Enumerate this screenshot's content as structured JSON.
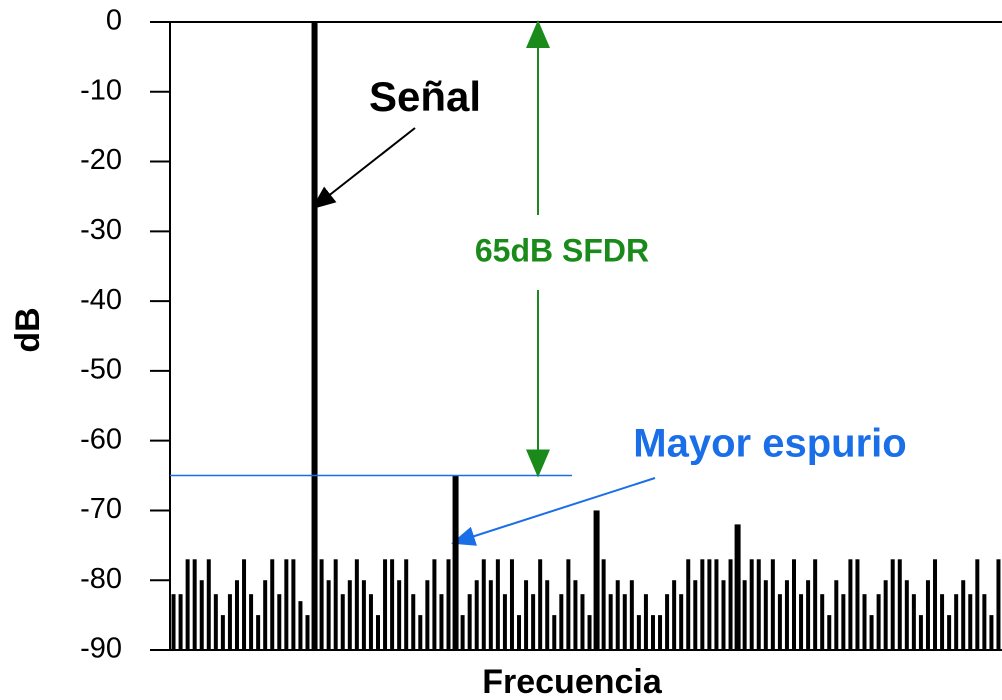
{
  "chart_data": {
    "type": "bar",
    "x_label": "Frecuencia",
    "y_label": "dB",
    "annotations": {
      "signal": "Señal",
      "sfdr": "65dB SFDR",
      "spur": "Mayor espurio"
    },
    "values": [
      -82,
      -82,
      -77,
      -77,
      -80,
      -77,
      -82,
      -85,
      -82,
      -80,
      -77,
      -82,
      -85,
      -80,
      -77,
      -82,
      -77,
      -77,
      -83,
      -85,
      0,
      -77,
      -80,
      -77,
      -82,
      -80,
      -77,
      -80,
      -82,
      -85,
      -77,
      -77,
      -80,
      -77,
      -82,
      -85,
      -80,
      -77,
      -82,
      -77,
      -65,
      -85,
      -82,
      -80,
      -77,
      -80,
      -77,
      -82,
      -77,
      -85,
      -80,
      -82,
      -77,
      -80,
      -85,
      -82,
      -77,
      -80,
      -82,
      -85,
      -70,
      -77,
      -82,
      -80,
      -82,
      -80,
      -85,
      -82,
      -85,
      -85,
      -82,
      -80,
      -82,
      -77,
      -80,
      -77,
      -77,
      -77,
      -80,
      -77,
      -72,
      -80,
      -77,
      -77,
      -80,
      -77,
      -82,
      -80,
      -77,
      -82,
      -80,
      -77,
      -82,
      -85,
      -80,
      -82,
      -77,
      -77,
      -82,
      -85,
      -82,
      -80,
      -77,
      -77,
      -80,
      -82,
      -85,
      -80,
      -77,
      -82,
      -85,
      -82,
      -80,
      -82,
      -77,
      -82,
      -85,
      -77
    ],
    "color": "#000000",
    "ylim": [
      -90,
      0
    ],
    "yticks": [
      0,
      -10,
      -20,
      -30,
      -40,
      -50,
      -60,
      -70,
      -80,
      -90
    ]
  }
}
